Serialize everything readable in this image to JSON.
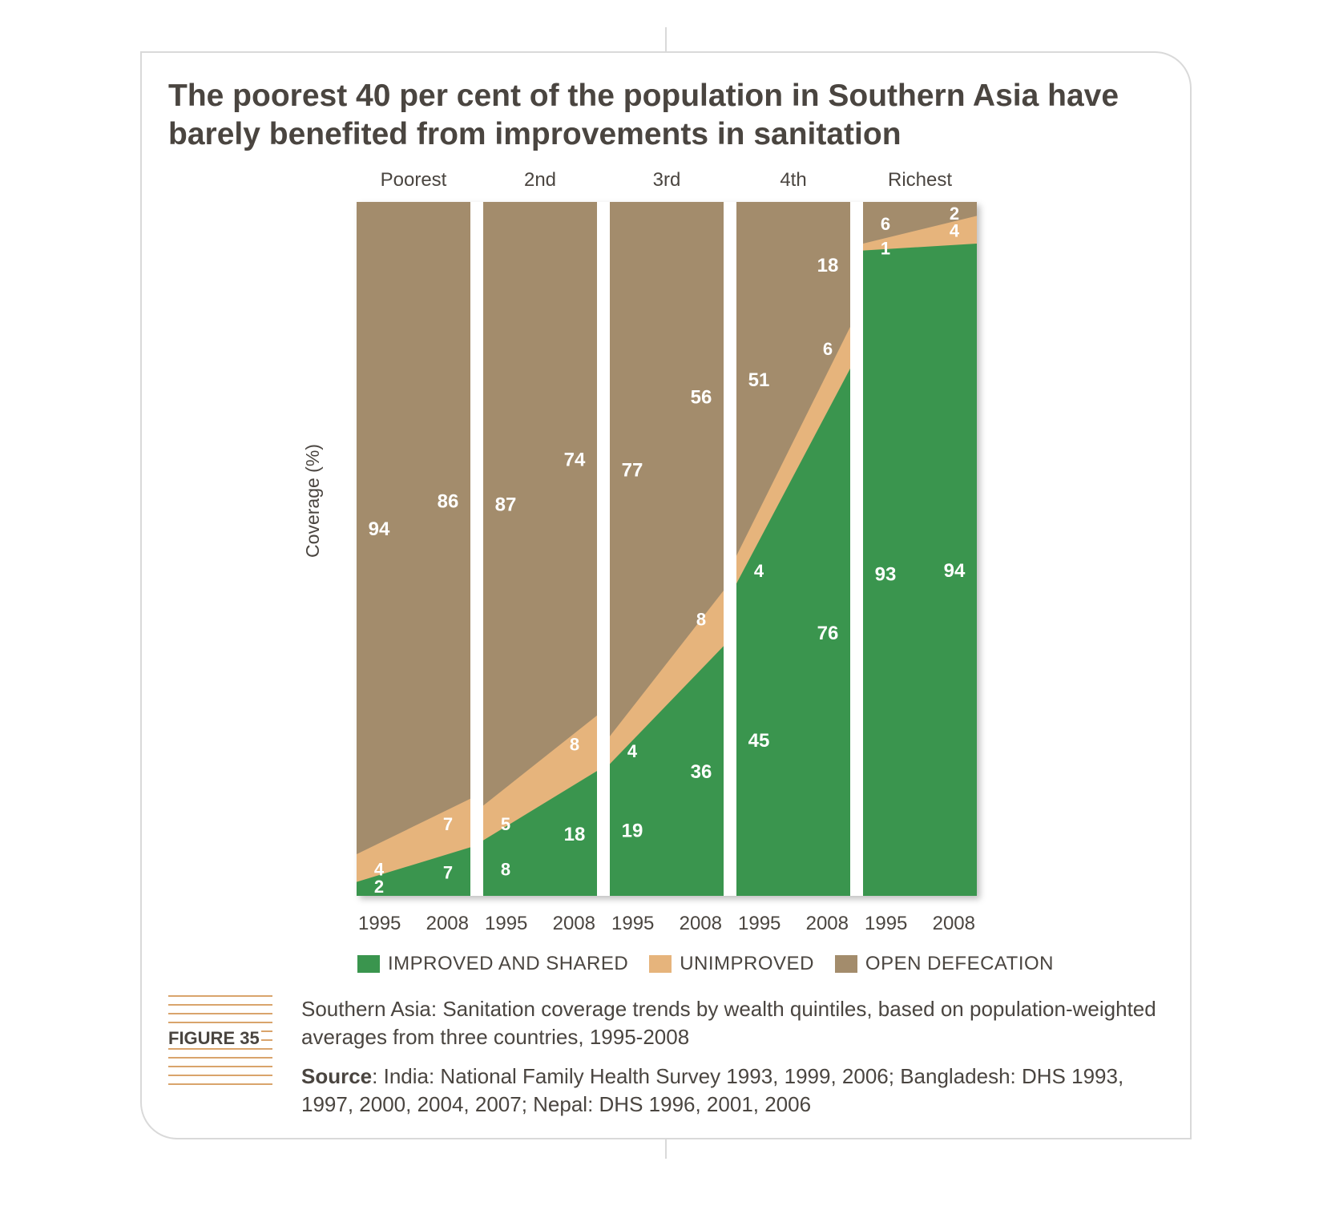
{
  "title": "The poorest 40 per cent of the population in Southern Asia have barely benefited from improvements in sanitation",
  "figure_label": "FIGURE 35",
  "caption": "Southern Asia: Sanitation coverage trends by wealth quintiles, based on population-weighted averages from three countries, 1995-2008",
  "source": {
    "label": "Source",
    "text": ": India: National Family Health Survey 1993, 1999, 2006; Bangladesh: DHS 1993, 1997, 2000, 2004, 2007; Nepal: DHS 1996, 2001, 2006"
  },
  "colors": {
    "improved": "#3a954e",
    "unimproved": "#e6b47c",
    "open": "#a38c6c",
    "label": "#ffffff",
    "text": "#4a4540"
  },
  "chart_data": {
    "type": "area",
    "ylabel": "Coverage (%)",
    "ylim": [
      0,
      100
    ],
    "stacked": true,
    "legend_position": "bottom",
    "groups": [
      {
        "name": "Poorest",
        "x": [
          "1995",
          "2008"
        ],
        "improved": [
          2,
          7
        ],
        "unimproved": [
          4,
          7
        ],
        "open": [
          94,
          86
        ]
      },
      {
        "name": "2nd",
        "x": [
          "1995",
          "2008"
        ],
        "improved": [
          8,
          18
        ],
        "unimproved": [
          5,
          8
        ],
        "open": [
          87,
          74
        ]
      },
      {
        "name": "3rd",
        "x": [
          "1995",
          "2008"
        ],
        "improved": [
          19,
          36
        ],
        "unimproved": [
          4,
          8
        ],
        "open": [
          77,
          56
        ]
      },
      {
        "name": "4th",
        "x": [
          "1995",
          "2008"
        ],
        "improved": [
          45,
          76
        ],
        "unimproved": [
          4,
          6
        ],
        "open": [
          51,
          18
        ]
      },
      {
        "name": "Richest",
        "x": [
          "1995",
          "2008"
        ],
        "improved": [
          93,
          94
        ],
        "unimproved": [
          1,
          4
        ],
        "open": [
          6,
          2
        ]
      }
    ],
    "series": [
      {
        "key": "improved",
        "name": "IMPROVED AND SHARED"
      },
      {
        "key": "unimproved",
        "name": "UNIMPROVED"
      },
      {
        "key": "open",
        "name": "OPEN DEFECATION"
      }
    ]
  }
}
